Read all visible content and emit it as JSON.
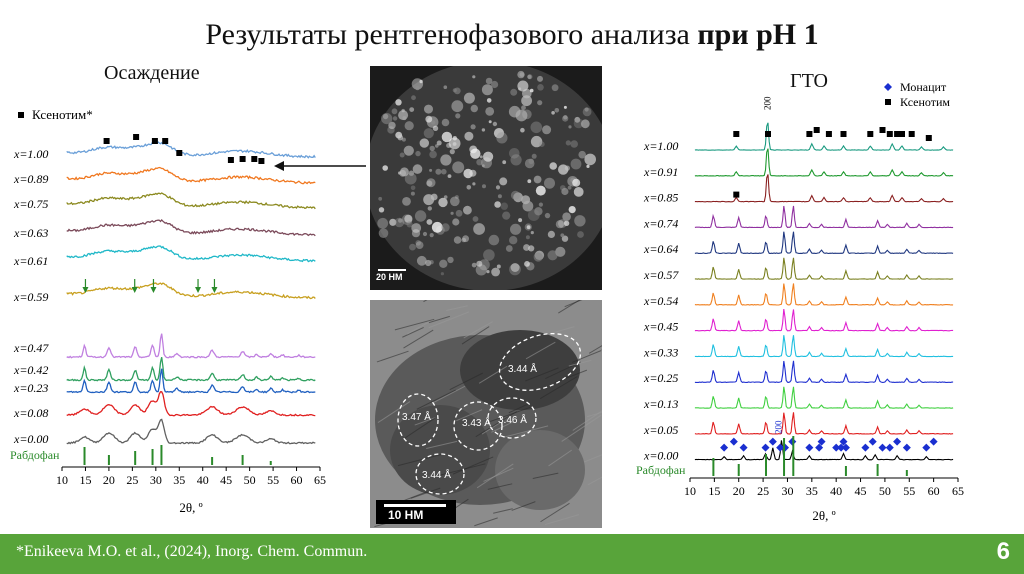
{
  "slide": {
    "title_main": "Результаты рентгенофазового анализа",
    "title_bold": "при pH 1",
    "left_heading": "Осаждение",
    "right_heading": "ГТО",
    "footnote": "*Enikeeva M.O. et al., (2024), Inorg. Chem. Commun.",
    "page_number": "6"
  },
  "images": {
    "tem_top_scale": "20 НМ",
    "tem_bottom_scale": "10 НМ",
    "d_spacings": [
      "3.44 Å",
      "3.47 Å",
      "3.43 Å",
      "3.46 Å",
      "3.44 Å"
    ]
  },
  "chart_data": [
    {
      "type": "line",
      "name": "precipitation",
      "xlabel": "2θ, º",
      "xlim": [
        10,
        65
      ],
      "xticks": [
        10,
        15,
        20,
        25,
        30,
        35,
        40,
        45,
        50,
        55,
        60,
        65
      ],
      "legend": [
        {
          "label": "Ксенотим*",
          "marker": "square",
          "color": "#000000"
        }
      ],
      "reference_label": "Рабдофан",
      "series": [
        {
          "name": "x=1.00",
          "color": "#6a9fd8",
          "kind": "amorphous"
        },
        {
          "name": "x=0.89",
          "color": "#f07820",
          "kind": "amorphous"
        },
        {
          "name": "x=0.75",
          "color": "#8c8a20",
          "kind": "amorphous"
        },
        {
          "name": "x=0.63",
          "color": "#7b4a5a",
          "kind": "amorphous"
        },
        {
          "name": "x=0.61",
          "color": "#20b8c8",
          "kind": "amorphous"
        },
        {
          "name": "x=0.59",
          "color": "#c8a020",
          "kind": "amorphous"
        },
        {
          "name": "x=0.47",
          "color": "#c080e0",
          "kind": "crystalline"
        },
        {
          "name": "x=0.42",
          "color": "#30a060",
          "kind": "crystalline"
        },
        {
          "name": "x=0.23",
          "color": "#2060c0",
          "kind": "crystalline"
        },
        {
          "name": "x=0.08",
          "color": "#e02020",
          "kind": "crystalline"
        },
        {
          "name": "x=0.00",
          "color": "#606060",
          "kind": "crystalline"
        }
      ],
      "xenotime_markers_2theta": [
        19.5,
        25.8,
        29.8,
        32.0,
        35.0,
        46.0,
        48.5,
        51.0,
        52.5
      ],
      "arrow_markers_2theta": [
        15.0,
        25.5,
        29.5,
        39.0,
        42.5
      ],
      "rhabdophane_reference_2theta": [
        14.8,
        20.0,
        25.6,
        29.3,
        31.2,
        42.0,
        48.5,
        54.5
      ],
      "main_peaks_2theta": [
        14.8,
        20.0,
        25.6,
        29.3,
        31.2,
        42.0,
        48.5,
        54.5,
        57.0,
        60.5
      ]
    },
    {
      "type": "line",
      "name": "hydrothermal",
      "xlabel": "2θ, º",
      "xlim": [
        10,
        65
      ],
      "xticks": [
        10,
        15,
        20,
        25,
        30,
        35,
        40,
        45,
        50,
        55,
        60,
        65
      ],
      "legend": [
        {
          "label": "Монацит",
          "marker": "diamond",
          "color": "#1a2fd0"
        },
        {
          "label": "Ксенотим",
          "marker": "square",
          "color": "#000000"
        }
      ],
      "peak_labels": [
        {
          "text": "200",
          "x": 25.9
        },
        {
          "text": "200",
          "x": 28.2
        }
      ],
      "reference_label": "Рабдофан",
      "series": [
        {
          "name": "x=1.00",
          "color": "#1a9a80",
          "kind": "xenotime"
        },
        {
          "name": "x=0.91",
          "color": "#209a30",
          "kind": "xenotime"
        },
        {
          "name": "x=0.85",
          "color": "#8a2020",
          "kind": "xenotime"
        },
        {
          "name": "x=0.74",
          "color": "#9030a0",
          "kind": "rhabdophane"
        },
        {
          "name": "x=0.64",
          "color": "#203880",
          "kind": "rhabdophane"
        },
        {
          "name": "x=0.57",
          "color": "#7a8020",
          "kind": "rhabdophane"
        },
        {
          "name": "x=0.54",
          "color": "#f08020",
          "kind": "rhabdophane"
        },
        {
          "name": "x=0.45",
          "color": "#e020d0",
          "kind": "rhabdophane"
        },
        {
          "name": "x=0.33",
          "color": "#20c0e0",
          "kind": "rhabdophane"
        },
        {
          "name": "x=0.25",
          "color": "#2030d0",
          "kind": "rhabdophane"
        },
        {
          "name": "x=0.13",
          "color": "#40d040",
          "kind": "rhabdophane"
        },
        {
          "name": "x=0.05",
          "color": "#e02020",
          "kind": "rhabdophane"
        },
        {
          "name": "x=0.00",
          "color": "#000000",
          "kind": "monazite"
        }
      ],
      "xenotime_markers_2theta": [
        19.5,
        26.0,
        34.5,
        36.0,
        38.5,
        41.5,
        47.0,
        49.5,
        51.0,
        52.5,
        53.5,
        55.5,
        59.0
      ],
      "xenotime_markers_x085_2theta": [
        19.5
      ],
      "monazite_markers_2theta": [
        17.0,
        19.0,
        21.0,
        25.5,
        27.0,
        28.5,
        29.5,
        31.0,
        34.5,
        36.5,
        37.0,
        40.0,
        41.0,
        41.5,
        42.0,
        46.0,
        47.5,
        49.5,
        51.0,
        52.5,
        54.5,
        58.5,
        60.0
      ],
      "rhabdophane_reference_2theta": [
        14.8,
        20.0,
        25.6,
        29.3,
        31.2,
        42.0,
        48.5,
        54.5
      ]
    }
  ]
}
